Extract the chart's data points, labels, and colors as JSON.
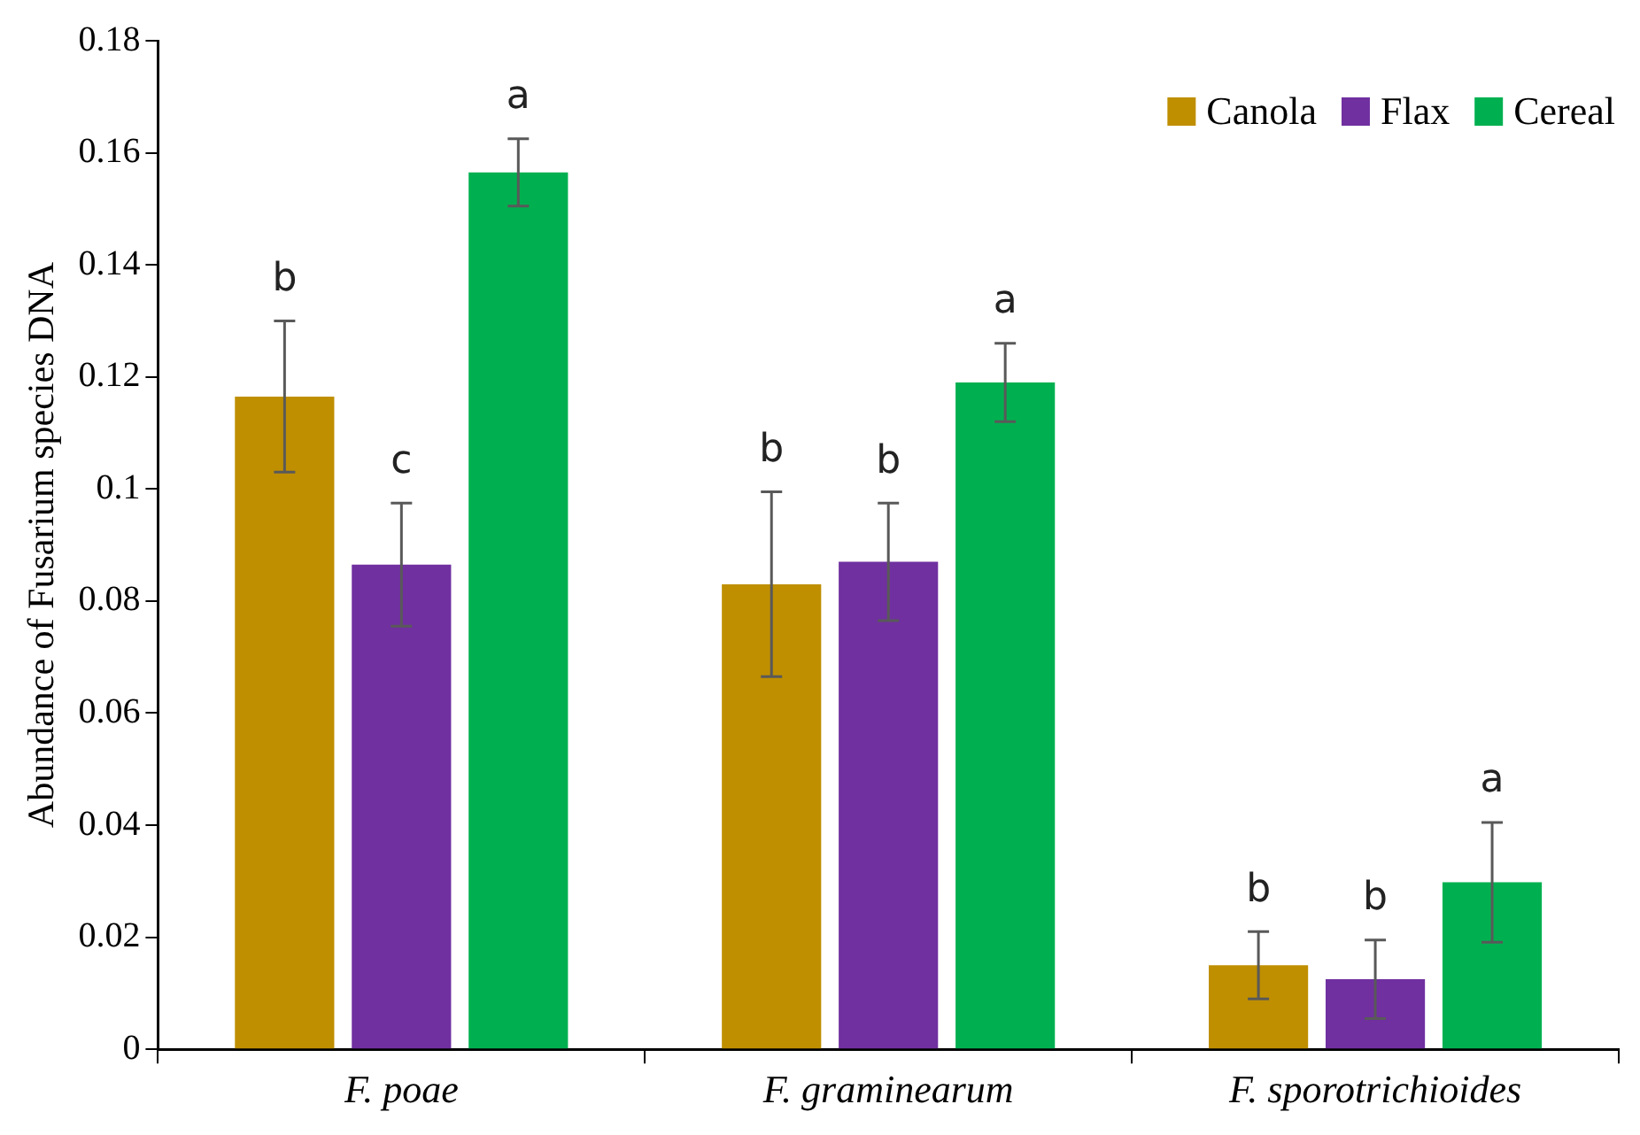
{
  "chart_data": {
    "type": "bar",
    "ylabel": "Abundance of Fusarium species DNA",
    "categories": [
      "F. poae",
      "F. graminearum",
      "F. sporotrichioides"
    ],
    "series": [
      {
        "name": "Canola",
        "color": "#bf8f00",
        "values": [
          0.1165,
          0.083,
          0.015
        ],
        "errors": [
          0.0135,
          0.0165,
          0.006
        ]
      },
      {
        "name": "Flax",
        "color": "#7030a0",
        "values": [
          0.0865,
          0.087,
          0.0125
        ],
        "errors": [
          0.011,
          0.0105,
          0.007
        ]
      },
      {
        "name": "Cereal",
        "color": "#00b050",
        "values": [
          0.1565,
          0.119,
          0.0298
        ],
        "errors": [
          0.006,
          0.007,
          0.0107
        ]
      }
    ],
    "ylim": [
      0,
      0.18
    ],
    "yticks": [
      0,
      0.02,
      0.04,
      0.06,
      0.08,
      {
        "value": 0.1,
        "label": "0.1"
      },
      0.12,
      0.14,
      0.16,
      0.18
    ],
    "grid": false,
    "legend": "top right",
    "annotations": [
      "b",
      "c",
      "a",
      "b",
      "b",
      "a",
      "b",
      "b",
      "a"
    ]
  }
}
